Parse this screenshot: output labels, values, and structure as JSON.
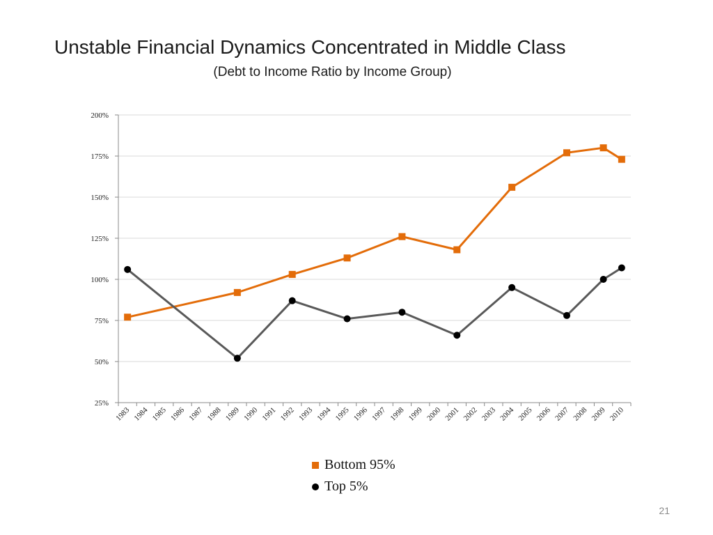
{
  "slide": {
    "title": "Unstable Financial Dynamics Concentrated in Middle Class",
    "subtitle": "(Debt to Income Ratio by Income Group)",
    "page_number": "21"
  },
  "chart_data": {
    "type": "line",
    "x": [
      "1983",
      "1984",
      "1985",
      "1986",
      "1987",
      "1988",
      "1989",
      "1990",
      "1991",
      "1992",
      "1993",
      "1994",
      "1995",
      "1996",
      "1997",
      "1998",
      "1999",
      "2000",
      "2001",
      "2002",
      "2003",
      "2004",
      "2005",
      "2006",
      "2007",
      "2008",
      "2009",
      "2010"
    ],
    "yticks": [
      "25%",
      "50%",
      "75%",
      "100%",
      "125%",
      "150%",
      "175%",
      "200%"
    ],
    "ylim": [
      25,
      200
    ],
    "grid": true,
    "legend_position": "bottom",
    "series": [
      {
        "name": "Bottom 95%",
        "color": "#e36c09",
        "marker": "square",
        "points": [
          {
            "x": "1983",
            "y": 77
          },
          {
            "x": "1989",
            "y": 92
          },
          {
            "x": "1992",
            "y": 103
          },
          {
            "x": "1995",
            "y": 113
          },
          {
            "x": "1998",
            "y": 126
          },
          {
            "x": "2001",
            "y": 118
          },
          {
            "x": "2004",
            "y": 156
          },
          {
            "x": "2007",
            "y": 177
          },
          {
            "x": "2009",
            "y": 180
          },
          {
            "x": "2010",
            "y": 173
          }
        ]
      },
      {
        "name": "Top 5%",
        "color": "#595959",
        "marker": "circle",
        "marker_color": "#000000",
        "points": [
          {
            "x": "1983",
            "y": 106
          },
          {
            "x": "1989",
            "y": 52
          },
          {
            "x": "1992",
            "y": 87
          },
          {
            "x": "1995",
            "y": 76
          },
          {
            "x": "1998",
            "y": 80
          },
          {
            "x": "2001",
            "y": 66
          },
          {
            "x": "2004",
            "y": 95
          },
          {
            "x": "2007",
            "y": 78
          },
          {
            "x": "2009",
            "y": 100
          },
          {
            "x": "2010",
            "y": 107
          }
        ]
      }
    ]
  }
}
